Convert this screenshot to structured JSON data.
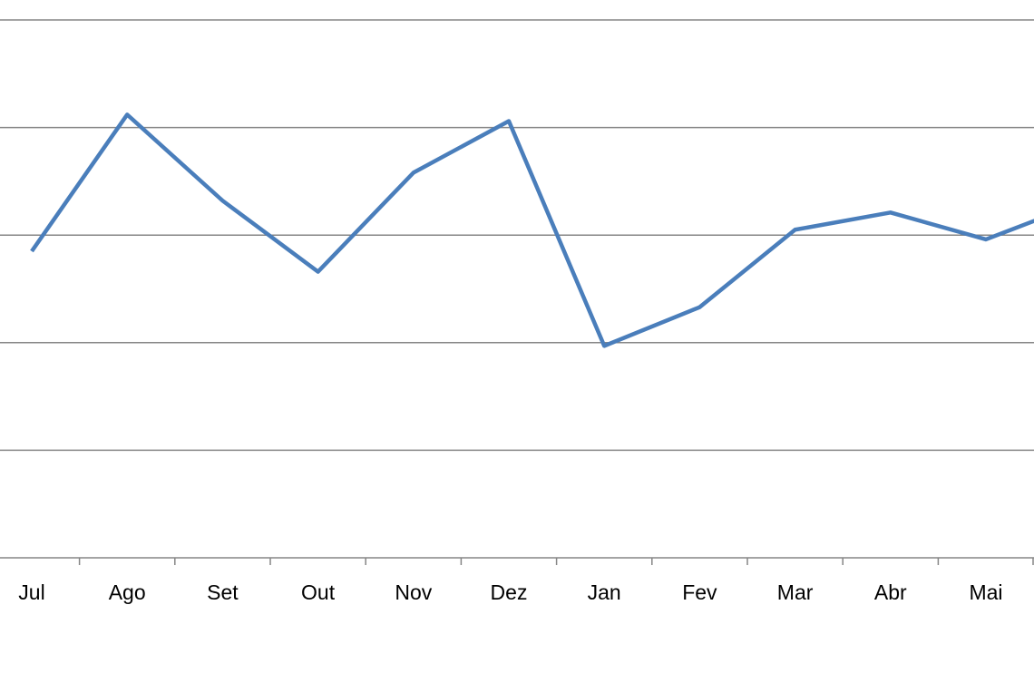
{
  "chart_data": {
    "type": "line",
    "title": "",
    "xlabel": "",
    "ylabel": "",
    "categories": [
      "Jul",
      "Ago",
      "Set",
      "Out",
      "Nov",
      "Dez",
      "Jan",
      "Fev",
      "Mar",
      "Abr",
      "Mai",
      ""
    ],
    "series": [
      {
        "values": [
          2.85,
          4.12,
          3.32,
          2.66,
          3.58,
          4.06,
          1.97,
          2.33,
          3.05,
          3.21,
          2.96,
          3.3
        ]
      }
    ],
    "ylim": [
      0,
      5
    ],
    "y_gridlines": [
      1,
      2,
      3,
      4,
      5
    ],
    "y_tick_labels_shown": false,
    "grid": true,
    "legend": "none",
    "colors": {
      "line": "#4a7ebb",
      "grid": "#868686",
      "axis": "#868686"
    }
  }
}
